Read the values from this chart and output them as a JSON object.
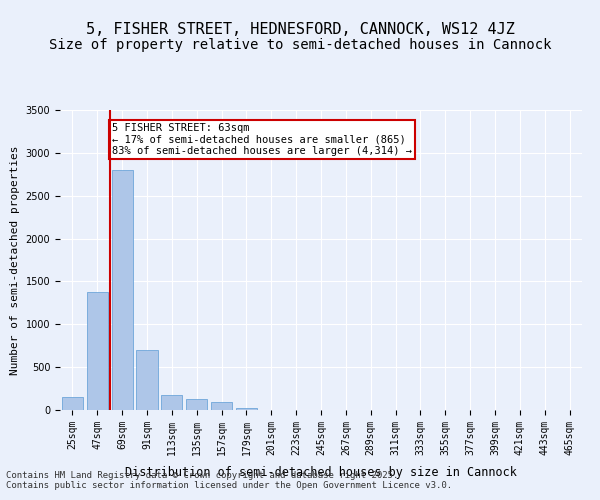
{
  "title": "5, FISHER STREET, HEDNESFORD, CANNOCK, WS12 4JZ",
  "subtitle": "Size of property relative to semi-detached houses in Cannock",
  "xlabel": "Distribution of semi-detached houses by size in Cannock",
  "ylabel": "Number of semi-detached properties",
  "categories": [
    "25sqm",
    "47sqm",
    "69sqm",
    "91sqm",
    "113sqm",
    "135sqm",
    "157sqm",
    "179sqm",
    "201sqm",
    "223sqm",
    "245sqm",
    "267sqm",
    "289sqm",
    "311sqm",
    "333sqm",
    "355sqm",
    "377sqm",
    "399sqm",
    "421sqm",
    "443sqm",
    "465sqm"
  ],
  "values": [
    150,
    1380,
    2800,
    700,
    175,
    130,
    90,
    20,
    0,
    0,
    0,
    0,
    0,
    0,
    0,
    0,
    0,
    0,
    0,
    0,
    0
  ],
  "bar_color": "#aec6e8",
  "bar_edge_color": "#5b9bd5",
  "property_line_x": 1.5,
  "property_line_color": "#cc0000",
  "annotation_text": "5 FISHER STREET: 63sqm\n← 17% of semi-detached houses are smaller (865)\n83% of semi-detached houses are larger (4,314) →",
  "annotation_box_color": "#cc0000",
  "ylim": [
    0,
    3500
  ],
  "yticks": [
    0,
    500,
    1000,
    1500,
    2000,
    2500,
    3000,
    3500
  ],
  "bg_color": "#eaf0fb",
  "plot_bg_color": "#eaf0fb",
  "footer_text": "Contains HM Land Registry data © Crown copyright and database right 2025.\nContains public sector information licensed under the Open Government Licence v3.0.",
  "title_fontsize": 11,
  "subtitle_fontsize": 10,
  "label_fontsize": 8,
  "tick_fontsize": 7,
  "footer_fontsize": 6.5
}
